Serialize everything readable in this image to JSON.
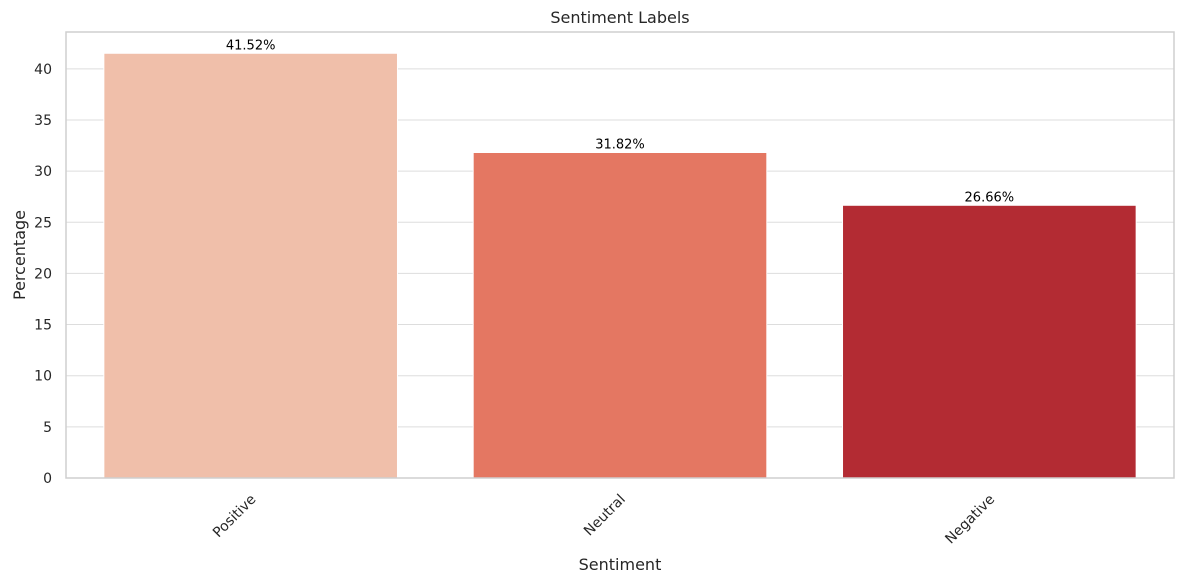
{
  "chart_data": {
    "type": "bar",
    "title": "Sentiment Labels",
    "xlabel": "Sentiment",
    "ylabel": "Percentage",
    "categories": [
      "Positive",
      "Neutral",
      "Negative"
    ],
    "values": [
      41.52,
      31.82,
      26.66
    ],
    "value_labels": [
      "41.52%",
      "31.82%",
      "26.66%"
    ],
    "colors": [
      "#f0bfaa",
      "#e47762",
      "#b32b33"
    ],
    "ylim": [
      0,
      43.6
    ],
    "yticks": [
      0,
      5,
      10,
      15,
      20,
      25,
      30,
      35,
      40
    ],
    "ytick_labels": [
      "0",
      "5",
      "10",
      "15",
      "20",
      "25",
      "30",
      "35",
      "40"
    ],
    "grid": "horizontal",
    "x_tick_rotation_degrees": 45
  }
}
